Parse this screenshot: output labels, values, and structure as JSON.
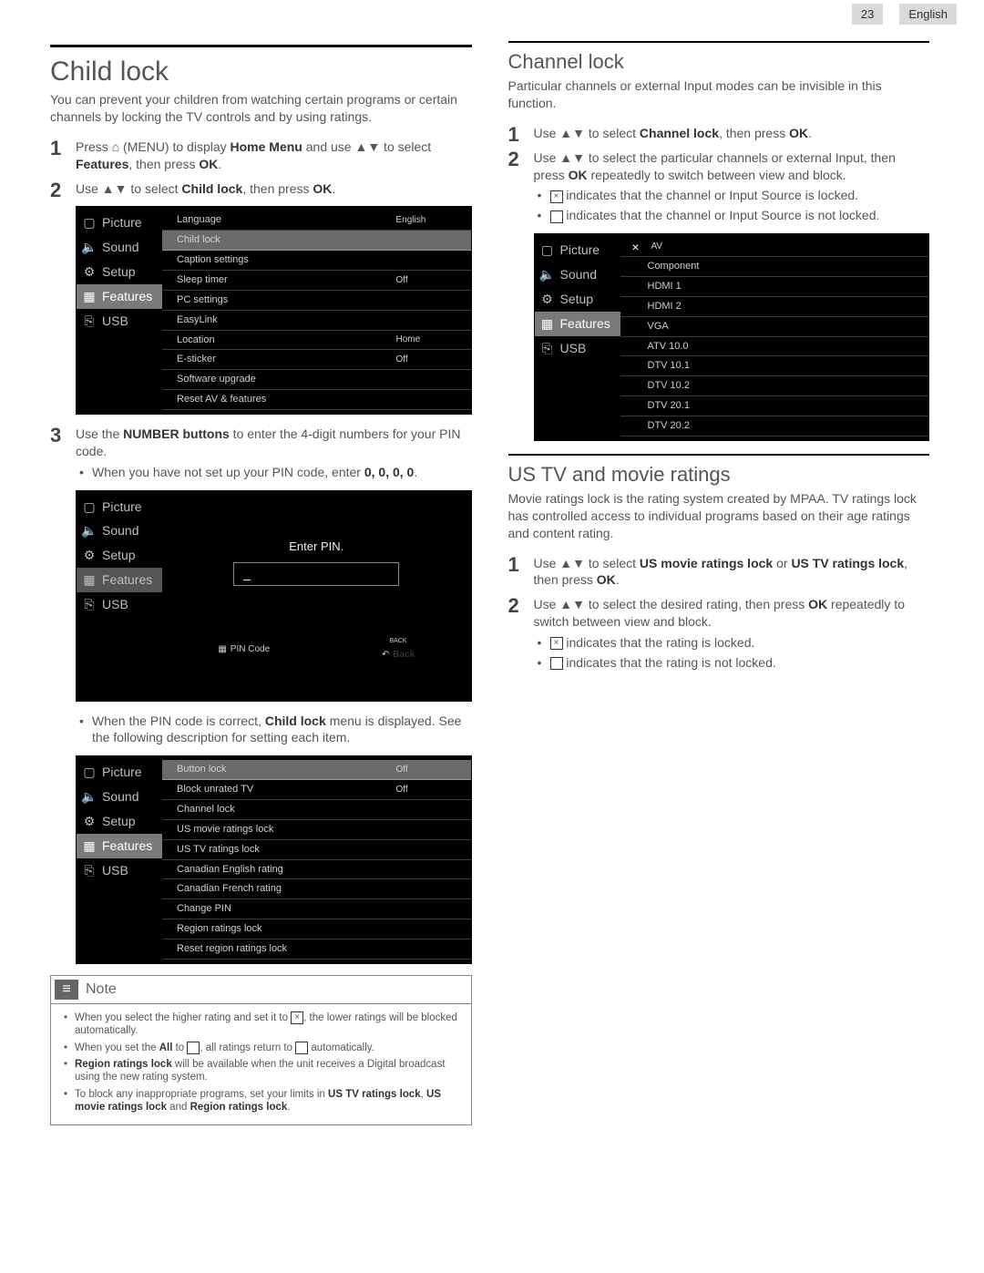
{
  "header": {
    "page_number": "23",
    "language": "English"
  },
  "left": {
    "title": "Child lock",
    "intro": "You can prevent your children from watching certain programs or certain channels by locking the TV controls and by using ratings.",
    "step1_a": "Press ",
    "step1_b": " (MENU) to display ",
    "step1_c": "Home Menu",
    "step1_d": " and use ▲▼ to select ",
    "step1_e": "Features",
    "step1_f": ", then press ",
    "step1_g": "OK",
    "step1_h": ".",
    "step2_a": "Use ▲▼ to select ",
    "step2_b": "Child lock",
    "step2_c": ", then press ",
    "step2_d": "OK",
    "step2_e": ".",
    "menu1": {
      "sidebar": [
        "Picture",
        "Sound",
        "Setup",
        "Features",
        "USB"
      ],
      "rows": [
        {
          "l": "Language",
          "v": "English"
        },
        {
          "l": "Child lock",
          "v": ""
        },
        {
          "l": "Caption settings",
          "v": ""
        },
        {
          "l": "Sleep timer",
          "v": "Off"
        },
        {
          "l": "PC settings",
          "v": ""
        },
        {
          "l": "EasyLink",
          "v": ""
        },
        {
          "l": "Location",
          "v": "Home"
        },
        {
          "l": "E-sticker",
          "v": "Off"
        },
        {
          "l": "Software upgrade",
          "v": ""
        },
        {
          "l": "Reset AV & features",
          "v": ""
        }
      ]
    },
    "step3_a": "Use the ",
    "step3_b": "NUMBER buttons",
    "step3_c": " to enter the 4-digit numbers for your PIN code.",
    "step3_sub_a": "When you have not set up your PIN code, enter ",
    "step3_sub_b": "0, 0, 0, 0",
    "step3_sub_c": ".",
    "pin": {
      "title": "Enter PIN.",
      "cursor": "_",
      "footer_pin": "PIN Code",
      "footer_back_label": "BACK",
      "footer_back": "Back"
    },
    "post_pin_a": "When the PIN code is correct, ",
    "post_pin_b": "Child lock",
    "post_pin_c": " menu is displayed. See the following description for setting each item.",
    "menu3": {
      "rows": [
        {
          "l": "Button lock",
          "v": "Off"
        },
        {
          "l": "Block unrated TV",
          "v": "Off"
        },
        {
          "l": "Channel lock",
          "v": ""
        },
        {
          "l": "US movie ratings lock",
          "v": ""
        },
        {
          "l": "US TV ratings lock",
          "v": ""
        },
        {
          "l": "Canadian English rating",
          "v": ""
        },
        {
          "l": "Canadian French rating",
          "v": ""
        },
        {
          "l": "Change PIN",
          "v": ""
        },
        {
          "l": "Region ratings lock",
          "v": ""
        },
        {
          "l": "Reset region ratings lock",
          "v": ""
        }
      ]
    },
    "note": {
      "title": "Note",
      "n1_a": "When you select the higher rating and set it to ",
      "n1_b": ", the lower ratings will be blocked automatically.",
      "n2_a": "When you set the ",
      "n2_b": "All",
      "n2_c": " to ",
      "n2_d": ", all ratings return to ",
      "n2_e": " automatically.",
      "n3_a": "Region ratings lock",
      "n3_b": " will be available when the unit receives a Digital broadcast using the new rating system.",
      "n4_a": "To block any inappropriate programs, set your limits in ",
      "n4_b": "US TV ratings lock",
      "n4_c": ", ",
      "n4_d": "US movie ratings lock",
      "n4_e": " and ",
      "n4_f": "Region ratings lock",
      "n4_g": "."
    }
  },
  "right": {
    "channel_title": "Channel lock",
    "channel_intro": "Particular channels or external Input modes can be invisible in this function.",
    "cstep1_a": "Use ▲▼ to select ",
    "cstep1_b": "Channel lock",
    "cstep1_c": ", then press ",
    "cstep1_d": "OK",
    "cstep1_e": ".",
    "cstep2_a": "Use ▲▼ to select the particular channels or external Input, then press ",
    "cstep2_b": "OK",
    "cstep2_c": " repeatedly to switch between view and block.",
    "cstep2_sub1": " indicates that the channel or Input Source is locked.",
    "cstep2_sub2": " indicates that the channel or Input Source is not locked.",
    "menu4": {
      "head": "AV",
      "rows": [
        "Component",
        "HDMI 1",
        "HDMI 2",
        "VGA",
        "ATV 10.0",
        "DTV 10.1",
        "DTV 10.2",
        "DTV 20.1",
        "DTV 20.2"
      ]
    },
    "ratings_title": "US TV and movie ratings",
    "ratings_intro": "Movie ratings lock is the rating system created by MPAA. TV ratings lock has controlled access to individual programs based on their age ratings and content rating.",
    "rstep1_a": "Use ▲▼ to select ",
    "rstep1_b": "US movie ratings lock",
    "rstep1_c": " or ",
    "rstep1_d": "US TV ratings lock",
    "rstep1_e": ", then press ",
    "rstep1_f": "OK",
    "rstep1_g": ".",
    "rstep2_a": "Use ▲▼ to select the desired rating, then press ",
    "rstep2_b": "OK",
    "rstep2_c": " repeatedly to switch between view and block.",
    "rstep2_sub1": " indicates that the rating is locked.",
    "rstep2_sub2": " indicates that the rating is not locked."
  }
}
